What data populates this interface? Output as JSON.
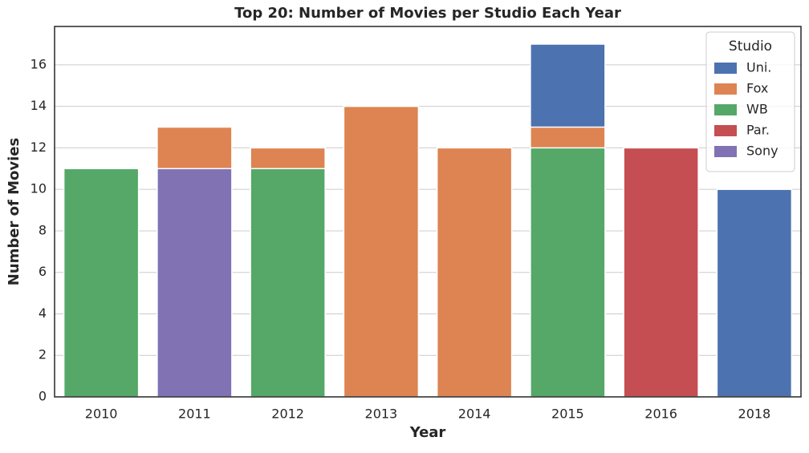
{
  "chart_data": {
    "type": "bar",
    "title": "Top 20: Number of Movies per Studio Each Year",
    "xlabel": "Year",
    "ylabel": "Number of Movies",
    "categories": [
      "2010",
      "2011",
      "2012",
      "2013",
      "2014",
      "2015",
      "2016",
      "2018"
    ],
    "series": [
      {
        "name": "Uni.",
        "color": "#4c72b0",
        "values": [
          null,
          null,
          null,
          null,
          null,
          17,
          null,
          10
        ]
      },
      {
        "name": "Fox",
        "color": "#dd8452",
        "values": [
          null,
          13,
          12,
          14,
          12,
          13,
          null,
          null
        ]
      },
      {
        "name": "WB",
        "color": "#55a868",
        "values": [
          11,
          null,
          11,
          null,
          null,
          12,
          null,
          null
        ]
      },
      {
        "name": "Par.",
        "color": "#c44e52",
        "values": [
          null,
          null,
          null,
          null,
          null,
          null,
          12,
          null
        ]
      },
      {
        "name": "Sony",
        "color": "#8172b3",
        "values": [
          null,
          11,
          null,
          null,
          null,
          null,
          null,
          null
        ]
      }
    ],
    "ylim": [
      0,
      17.85
    ],
    "yticks": [
      0,
      2,
      4,
      6,
      8,
      10,
      12,
      14,
      16
    ],
    "grid": true,
    "legend_title": "Studio",
    "legend_position": "upper right"
  }
}
